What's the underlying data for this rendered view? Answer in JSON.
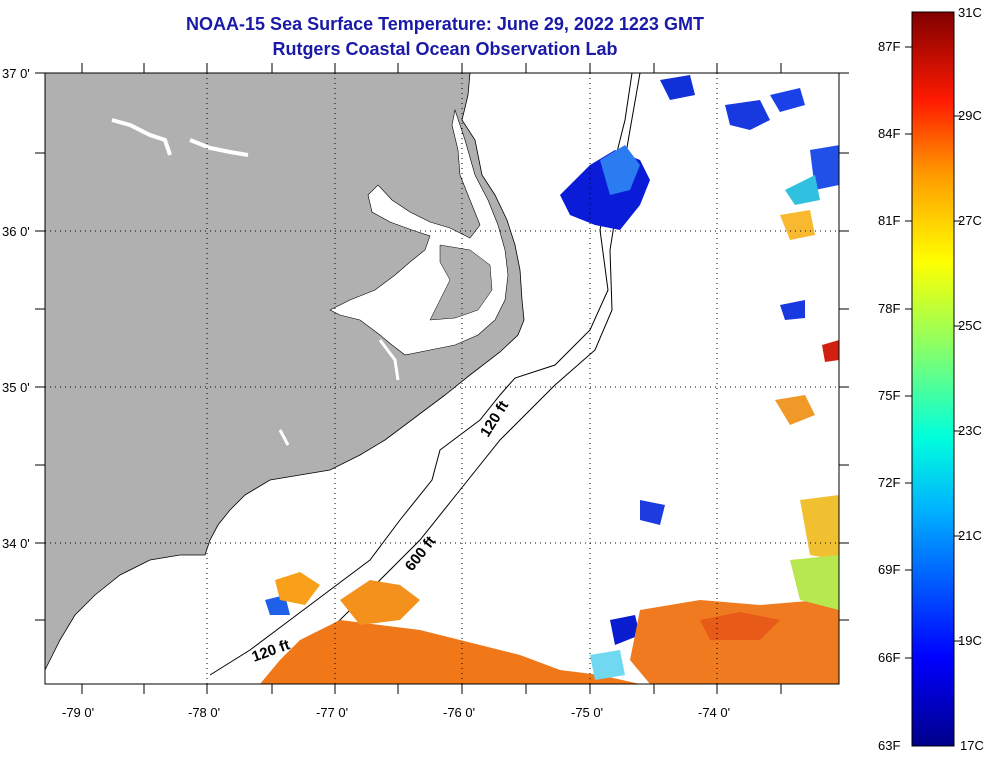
{
  "header": {
    "title": "NOAA-15 Sea Surface Temperature:  June 29, 2022 1223 GMT",
    "subtitle": "Rutgers Coastal Ocean Observation Lab"
  },
  "map": {
    "lat_labels": [
      "37 0'",
      "36 0'",
      "35 0'",
      "34 0'"
    ],
    "lon_labels": [
      "-79 0'",
      "-78 0'",
      "-77 0'",
      "-76 0'",
      "-75 0'",
      "-74 0'"
    ],
    "depth_labels": [
      "120 ft",
      "600 ft",
      "120 ft"
    ],
    "land_color": "#b0b0b0"
  },
  "colorbar": {
    "fahrenheit": [
      "87F",
      "84F",
      "81F",
      "78F",
      "75F",
      "72F",
      "69F",
      "66F",
      "63F"
    ],
    "celsius": [
      "31C",
      "29C",
      "27C",
      "25C",
      "23C",
      "21C",
      "19C",
      "17C"
    ]
  }
}
